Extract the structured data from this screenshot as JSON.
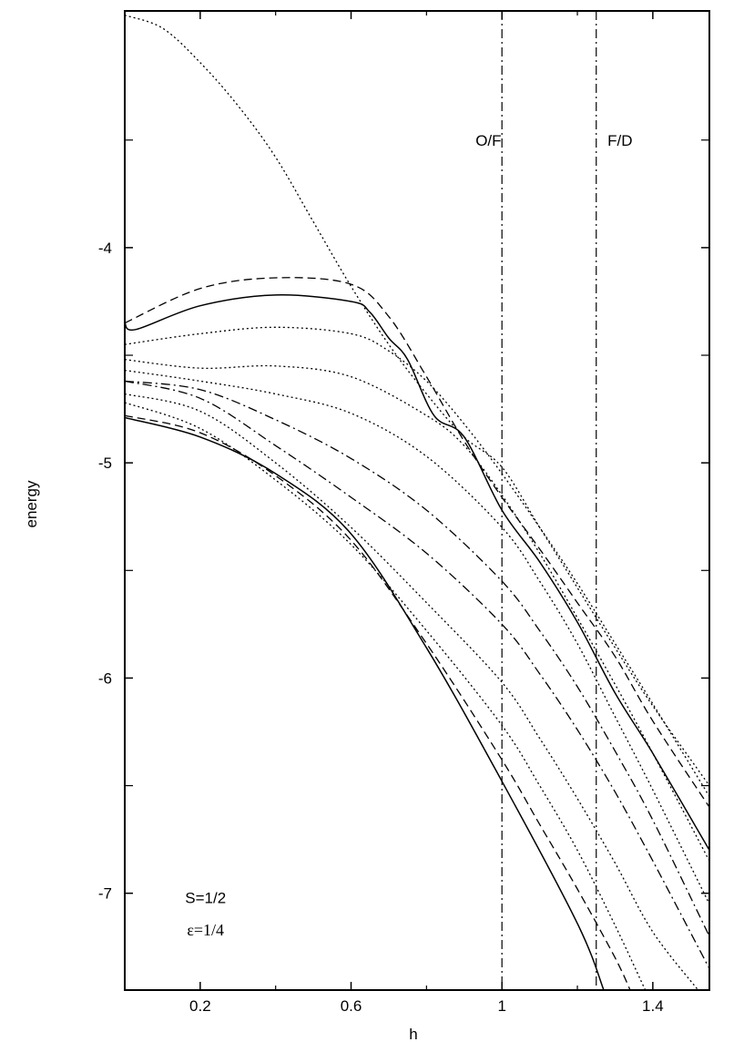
{
  "chart_data": {
    "type": "line",
    "xlabel": "h",
    "ylabel": "energy",
    "xlim": [
      0,
      1.55
    ],
    "ylim": [
      -7.45,
      -2.9
    ],
    "xticks": [
      0.2,
      0.6,
      1,
      1.4
    ],
    "xtick_labels": [
      "0.2",
      "0.6",
      "1",
      "1.4"
    ],
    "xticks_minor": [
      0.4,
      0.8,
      1.2
    ],
    "yticks": [
      -7,
      -6,
      -5,
      -4
    ],
    "ytick_labels": [
      "-7",
      "-6",
      "-5",
      "-4"
    ],
    "yticks_minor": [
      -6.5,
      -5.5,
      -4.5,
      -3.5
    ],
    "grid": false,
    "annotations": [
      {
        "id": "of",
        "text": "O/F",
        "x": 0.93,
        "y": -3.5
      },
      {
        "id": "fd",
        "text": "F/D",
        "x": 1.28,
        "y": -3.5
      },
      {
        "id": "spin",
        "text": "S=1/2",
        "x": 0.16,
        "y": -7.02
      },
      {
        "id": "eps",
        "text": "ε=1/4",
        "x": 0.165,
        "y": -7.17
      }
    ],
    "vlines": [
      {
        "x": 1.0,
        "style": "dashdot"
      },
      {
        "x": 1.25,
        "style": "dashdot"
      }
    ],
    "series": [
      {
        "style": "solid",
        "x": [
          0,
          0.2,
          0.4,
          0.6,
          0.8,
          1.0,
          1.2,
          1.27
        ],
        "y": [
          -4.79,
          -4.88,
          -5.05,
          -5.33,
          -5.86,
          -6.48,
          -7.14,
          -7.45
        ]
      },
      {
        "style": "solid",
        "x": [
          0,
          0.03,
          0.2,
          0.4,
          0.6,
          0.65,
          0.7,
          0.75,
          0.82,
          0.9,
          1.0,
          1.1,
          1.2,
          1.3,
          1.4,
          1.55
        ],
        "y": [
          -4.35,
          -4.38,
          -4.27,
          -4.22,
          -4.25,
          -4.3,
          -4.42,
          -4.52,
          -4.78,
          -4.88,
          -5.22,
          -5.46,
          -5.74,
          -6.07,
          -6.35,
          -6.8
        ]
      },
      {
        "style": "dashed",
        "x": [
          0,
          0.2,
          0.4,
          0.6,
          0.7,
          0.8,
          0.9,
          1.0,
          1.1,
          1.2,
          1.3,
          1.4,
          1.55
        ],
        "y": [
          -4.35,
          -4.19,
          -4.14,
          -4.17,
          -4.32,
          -4.6,
          -4.9,
          -5.16,
          -5.4,
          -5.65,
          -5.9,
          -6.2,
          -6.6
        ]
      },
      {
        "style": "dotted",
        "x": [
          0,
          0.1,
          0.2,
          0.3,
          0.4,
          0.5,
          0.6,
          0.7,
          0.8,
          0.9,
          1.0,
          1.1,
          1.2,
          1.3,
          1.4,
          1.55
        ],
        "y": [
          -2.92,
          -2.98,
          -3.14,
          -3.34,
          -3.58,
          -3.88,
          -4.18,
          -4.45,
          -4.68,
          -4.88,
          -5.02,
          -5.3,
          -5.58,
          -5.86,
          -6.13,
          -6.5
        ]
      },
      {
        "style": "dotted",
        "x": [
          0,
          0.2,
          0.4,
          0.6,
          0.7,
          0.8,
          0.9,
          1.0,
          1.1,
          1.2,
          1.3,
          1.4,
          1.55
        ],
        "y": [
          -4.45,
          -4.4,
          -4.37,
          -4.4,
          -4.48,
          -4.62,
          -4.82,
          -5.05,
          -5.3,
          -5.56,
          -5.84,
          -6.12,
          -6.55
        ]
      },
      {
        "style": "dotted",
        "x": [
          0,
          0.2,
          0.4,
          0.6,
          0.8,
          0.9,
          1.0,
          1.1,
          1.2,
          1.3,
          1.4,
          1.55
        ],
        "y": [
          -4.52,
          -4.56,
          -4.55,
          -4.6,
          -4.78,
          -4.92,
          -5.15,
          -5.42,
          -5.72,
          -6.03,
          -6.35,
          -6.85
        ]
      },
      {
        "style": "dotted",
        "x": [
          0,
          0.2,
          0.4,
          0.6,
          0.8,
          1.0,
          1.1,
          1.2,
          1.3,
          1.4,
          1.55
        ],
        "y": [
          -4.57,
          -4.62,
          -4.68,
          -4.77,
          -4.97,
          -5.3,
          -5.55,
          -5.84,
          -6.18,
          -6.52,
          -7.05
        ]
      },
      {
        "style": "dashdot",
        "x": [
          0,
          0.2,
          0.4,
          0.6,
          0.8,
          1.0,
          1.1,
          1.2,
          1.3,
          1.4,
          1.55
        ],
        "y": [
          -4.62,
          -4.66,
          -4.8,
          -4.98,
          -5.22,
          -5.55,
          -5.78,
          -6.04,
          -6.34,
          -6.66,
          -7.2
        ]
      },
      {
        "style": "dashdot",
        "x": [
          0,
          0.2,
          0.4,
          0.6,
          0.8,
          1.0,
          1.1,
          1.2,
          1.3,
          1.4,
          1.55
        ],
        "y": [
          -4.62,
          -4.7,
          -4.92,
          -5.16,
          -5.42,
          -5.75,
          -5.98,
          -6.24,
          -6.53,
          -6.85,
          -7.35
        ]
      },
      {
        "style": "dotted",
        "x": [
          0,
          0.2,
          0.4,
          0.6,
          0.8,
          1.0,
          1.1,
          1.2,
          1.3,
          1.4,
          1.52
        ],
        "y": [
          -4.68,
          -4.76,
          -5.0,
          -5.3,
          -5.65,
          -6.02,
          -6.28,
          -6.56,
          -6.86,
          -7.18,
          -7.45
        ]
      },
      {
        "style": "dotted",
        "x": [
          0,
          0.2,
          0.4,
          0.6,
          0.8,
          1.0,
          1.1,
          1.2,
          1.3,
          1.38
        ],
        "y": [
          -4.72,
          -4.84,
          -5.08,
          -5.38,
          -5.78,
          -6.22,
          -6.5,
          -6.8,
          -7.15,
          -7.45
        ]
      },
      {
        "style": "dashed",
        "x": [
          0,
          0.2,
          0.4,
          0.6,
          0.8,
          1.0,
          1.1,
          1.2,
          1.3,
          1.34
        ],
        "y": [
          -4.78,
          -4.86,
          -5.06,
          -5.36,
          -5.84,
          -6.38,
          -6.68,
          -6.98,
          -7.3,
          -7.45
        ]
      }
    ]
  }
}
